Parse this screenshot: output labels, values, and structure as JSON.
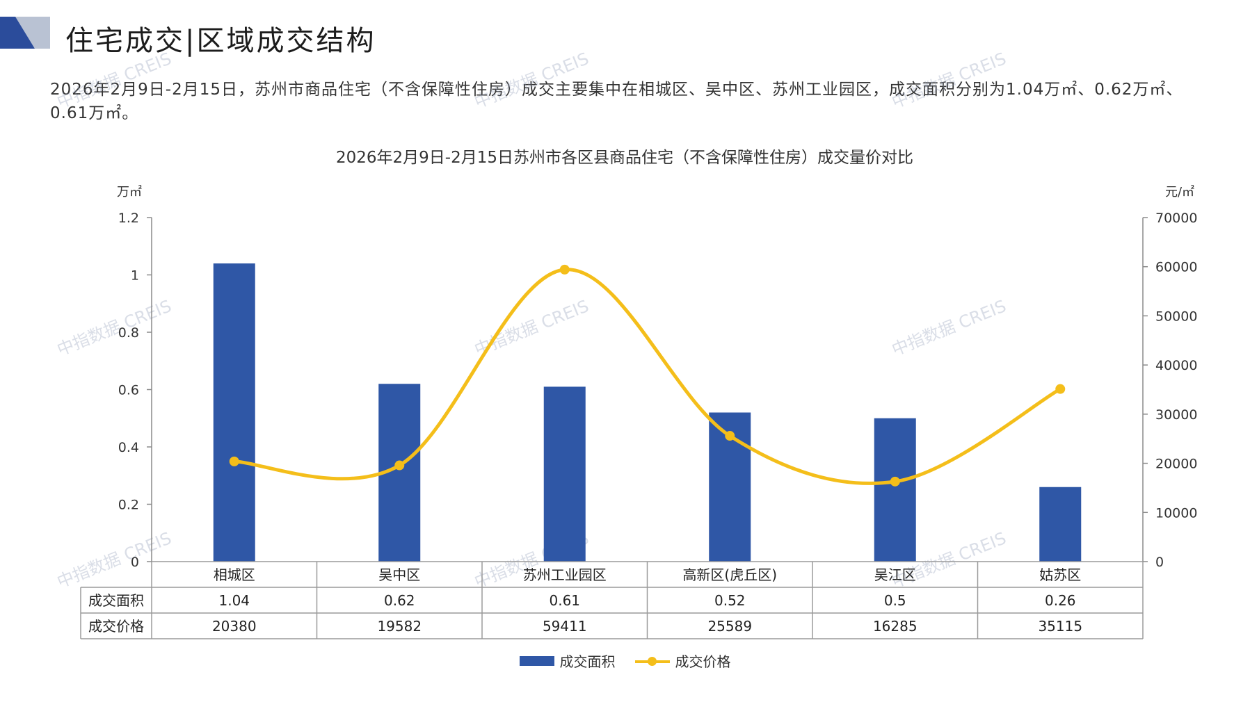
{
  "header": {
    "title": "住宅成交|区域成交结构"
  },
  "summary": {
    "text": "2026年2月9日-2月15日，苏州市商品住宅（不含保障性住房）成交主要集中在相城区、吴中区、苏州工业园区，成交面积分别为1.04万㎡、0.62万㎡、0.61万㎡。"
  },
  "watermark": {
    "text": "中指数据 CREIS"
  },
  "colors": {
    "bar": "#2F57A6",
    "line": "#F4BE1A",
    "logo_dark": "#2B4C9B",
    "logo_light": "#B9C2D3"
  },
  "chart_data": {
    "type": "bar",
    "title": "2026年2月9日-2月15日苏州市各区县商品住宅（不含保障性住房）成交量价对比",
    "categories": [
      "相城区",
      "吴中区",
      "苏州工业园区",
      "高新区(虎丘区)",
      "吴江区",
      "姑苏区"
    ],
    "series": [
      {
        "name": "成交面积",
        "type": "bar",
        "axis": "left",
        "values": [
          1.04,
          0.62,
          0.61,
          0.52,
          0.5,
          0.26
        ]
      },
      {
        "name": "成交价格",
        "type": "line",
        "axis": "right",
        "values": [
          20380,
          19582,
          59411,
          25589,
          16285,
          35115
        ]
      }
    ],
    "y_left": {
      "unit": "万㎡",
      "min": 0,
      "max": 1.2,
      "ticks": [
        "0",
        "0.2",
        "0.4",
        "0.6",
        "0.8",
        "1",
        "1.2"
      ]
    },
    "y_right": {
      "unit": "元/㎡",
      "min": 0,
      "max": 70000,
      "ticks": [
        "0",
        "10000",
        "20000",
        "30000",
        "40000",
        "50000",
        "60000",
        "70000"
      ]
    },
    "table": {
      "row_labels": [
        "成交面积",
        "成交价格"
      ],
      "rows": [
        [
          "1.04",
          "0.62",
          "0.61",
          "0.52",
          "0.5",
          "0.26"
        ],
        [
          "20380",
          "19582",
          "59411",
          "25589",
          "16285",
          "35115"
        ]
      ]
    },
    "legend": [
      "成交面积",
      "成交价格"
    ],
    "legend_position": "bottom",
    "grid": false
  }
}
